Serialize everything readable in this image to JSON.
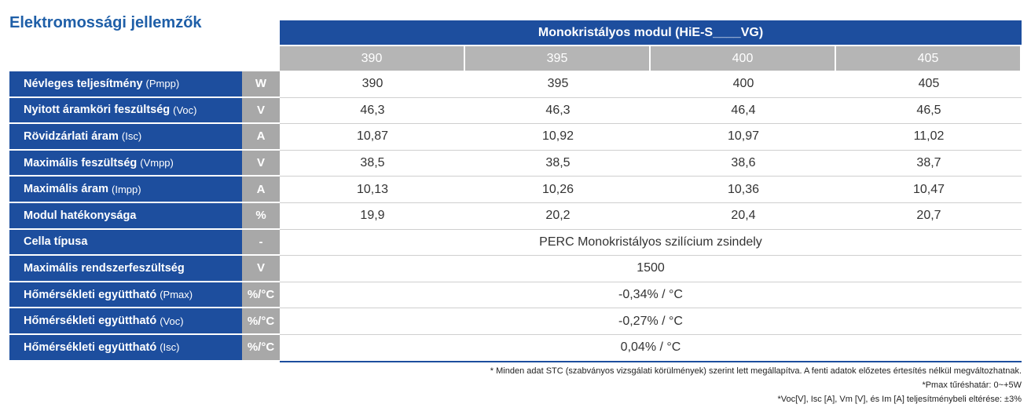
{
  "title": "Elektromossági jellemzők",
  "table": {
    "header": "Monokristályos modul  (HiE-S____VG)",
    "models": [
      "390",
      "395",
      "400",
      "405"
    ],
    "rows": [
      {
        "label": "Névleges teljesítmény",
        "note": "(Pmpp)",
        "unit": "W",
        "values": [
          "390",
          "395",
          "400",
          "405"
        ]
      },
      {
        "label": "Nyitott áramköri feszültség",
        "note": "(Voc)",
        "unit": "V",
        "values": [
          "46,3",
          "46,3",
          "46,4",
          "46,5"
        ]
      },
      {
        "label": "Rövidzárlati áram",
        "note": "(Isc)",
        "unit": "A",
        "values": [
          "10,87",
          "10,92",
          "10,97",
          "11,02"
        ]
      },
      {
        "label": "Maximális feszültség",
        "note": "(Vmpp)",
        "unit": "V",
        "values": [
          "38,5",
          "38,5",
          "38,6",
          "38,7"
        ]
      },
      {
        "label": "Maximális áram",
        "note": "(Impp)",
        "unit": "A",
        "values": [
          "10,13",
          "10,26",
          "10,36",
          "10,47"
        ]
      },
      {
        "label": "Modul hatékonysága",
        "unit": "%",
        "values": [
          "19,9",
          "20,2",
          "20,4",
          "20,7"
        ]
      },
      {
        "label": "Cella típusa",
        "unit": "-",
        "value": "PERC Monokristályos szilícium zsindely"
      },
      {
        "label": "Maximális rendszerfeszültség",
        "unit": "V",
        "value": "1500"
      },
      {
        "label": "Hőmérsékleti együttható",
        "note": "(Pmax)",
        "unit": "%/°C",
        "value": "-0,34% / °C"
      },
      {
        "label": "Hőmérsékleti együttható",
        "note": "(Voc)",
        "unit": "%/°C",
        "value": "-0,27% / °C"
      },
      {
        "label": "Hőmérsékleti együttható",
        "note": "(Isc)",
        "unit": "%/°C",
        "value": "0,04% / °C"
      }
    ]
  },
  "footnotes": [
    "* Minden adat STC (szabványos vizsgálati körülmények) szerint lett megállapítva. A fenti adatok előzetes értesítés nélkül megváltozhatnak.",
    "*Pmax tűréshatár: 0~+5W",
    "*Voc[V], Isc [A], Vm [V], és Im [A] teljesítménybeli eltérése: ±3%"
  ]
}
